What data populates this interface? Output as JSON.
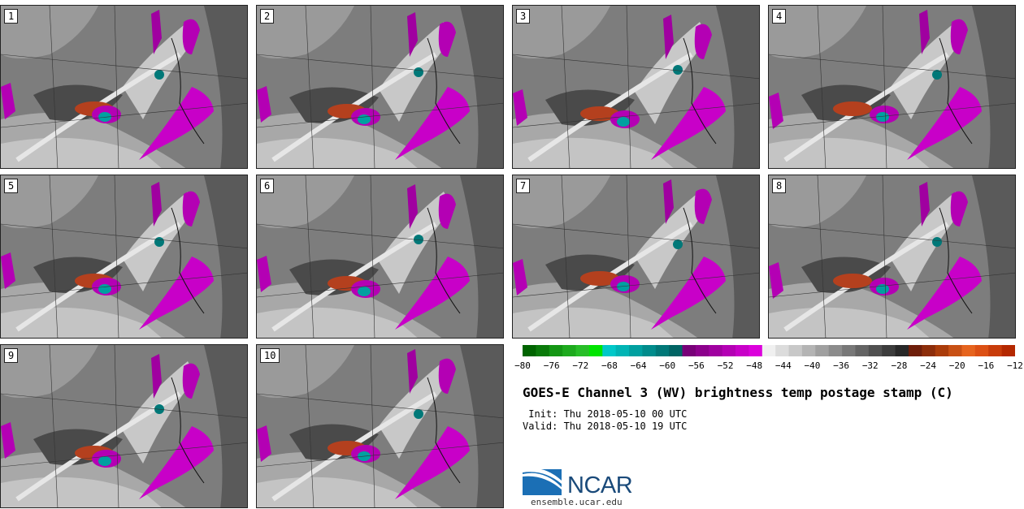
{
  "panels": [
    {
      "label": "1"
    },
    {
      "label": "2"
    },
    {
      "label": "3"
    },
    {
      "label": "4"
    },
    {
      "label": "5"
    },
    {
      "label": "6"
    },
    {
      "label": "7"
    },
    {
      "label": "8"
    },
    {
      "label": "9"
    },
    {
      "label": "10"
    }
  ],
  "colorbar": {
    "colors": [
      "#006400",
      "#0a7a0a",
      "#149614",
      "#1eaa1e",
      "#28be28",
      "#00e400",
      "#00c8c8",
      "#00b4b4",
      "#00a0a0",
      "#008c8c",
      "#007878",
      "#006464",
      "#780078",
      "#8c008c",
      "#a000a0",
      "#b400b4",
      "#c800c8",
      "#dc00dc",
      "#f0f0f0",
      "#dcdcdc",
      "#c8c8c8",
      "#b4b4b4",
      "#a0a0a0",
      "#8c8c8c",
      "#787878",
      "#646464",
      "#505050",
      "#3c3c3c",
      "#282828",
      "#6e1e0a",
      "#8c2d0a",
      "#aa3c0a",
      "#c85014",
      "#e6641e",
      "#dc5014",
      "#c83c0a",
      "#b42800"
    ],
    "tick_labels": [
      "−80",
      "−76",
      "−72",
      "−68",
      "−64",
      "−60",
      "−56",
      "−52",
      "−48",
      "−44",
      "−40",
      "−36",
      "−32",
      "−28",
      "−24",
      "−20",
      "−16",
      "−12"
    ]
  },
  "title": "GOES-E Channel 3 (WV) brightness temp postage stamp (C)",
  "init": " Init: Thu 2018-05-10 00 UTC",
  "valid": "Valid: Thu 2018-05-10 19 UTC",
  "logo": {
    "name": "NCAR",
    "url": "ensemble.ucar.edu"
  }
}
